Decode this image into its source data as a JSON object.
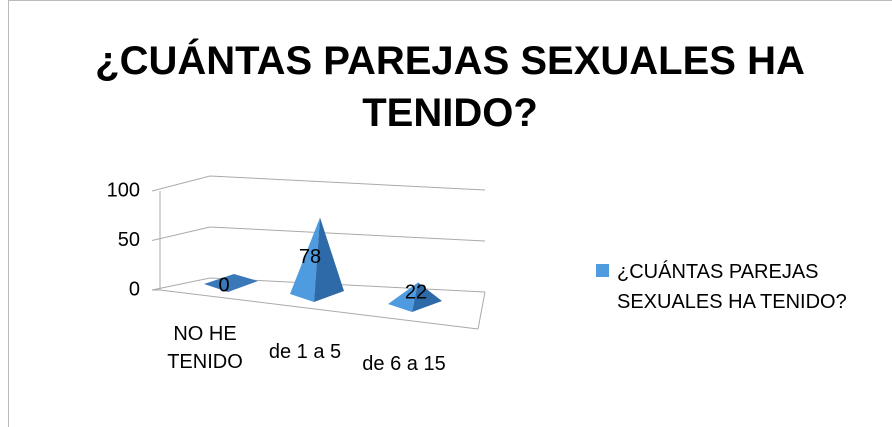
{
  "chart_data": {
    "type": "pyramid",
    "title": "¿CUÁNTAS  PAREJAS SEXUALES  HA TENIDO?",
    "categories": [
      "NO  HE TENIDO",
      "de  1  a 5",
      "de 6  a 15"
    ],
    "series": [
      {
        "name": "¿CUÁNTAS  PAREJAS SEXUALES  HA  TENIDO?",
        "color": "#4f9be0",
        "values": [
          0,
          78,
          22
        ]
      }
    ],
    "ylim": [
      0,
      100
    ],
    "yticks": [
      0,
      50,
      100
    ],
    "grid": true,
    "legend": "right"
  }
}
